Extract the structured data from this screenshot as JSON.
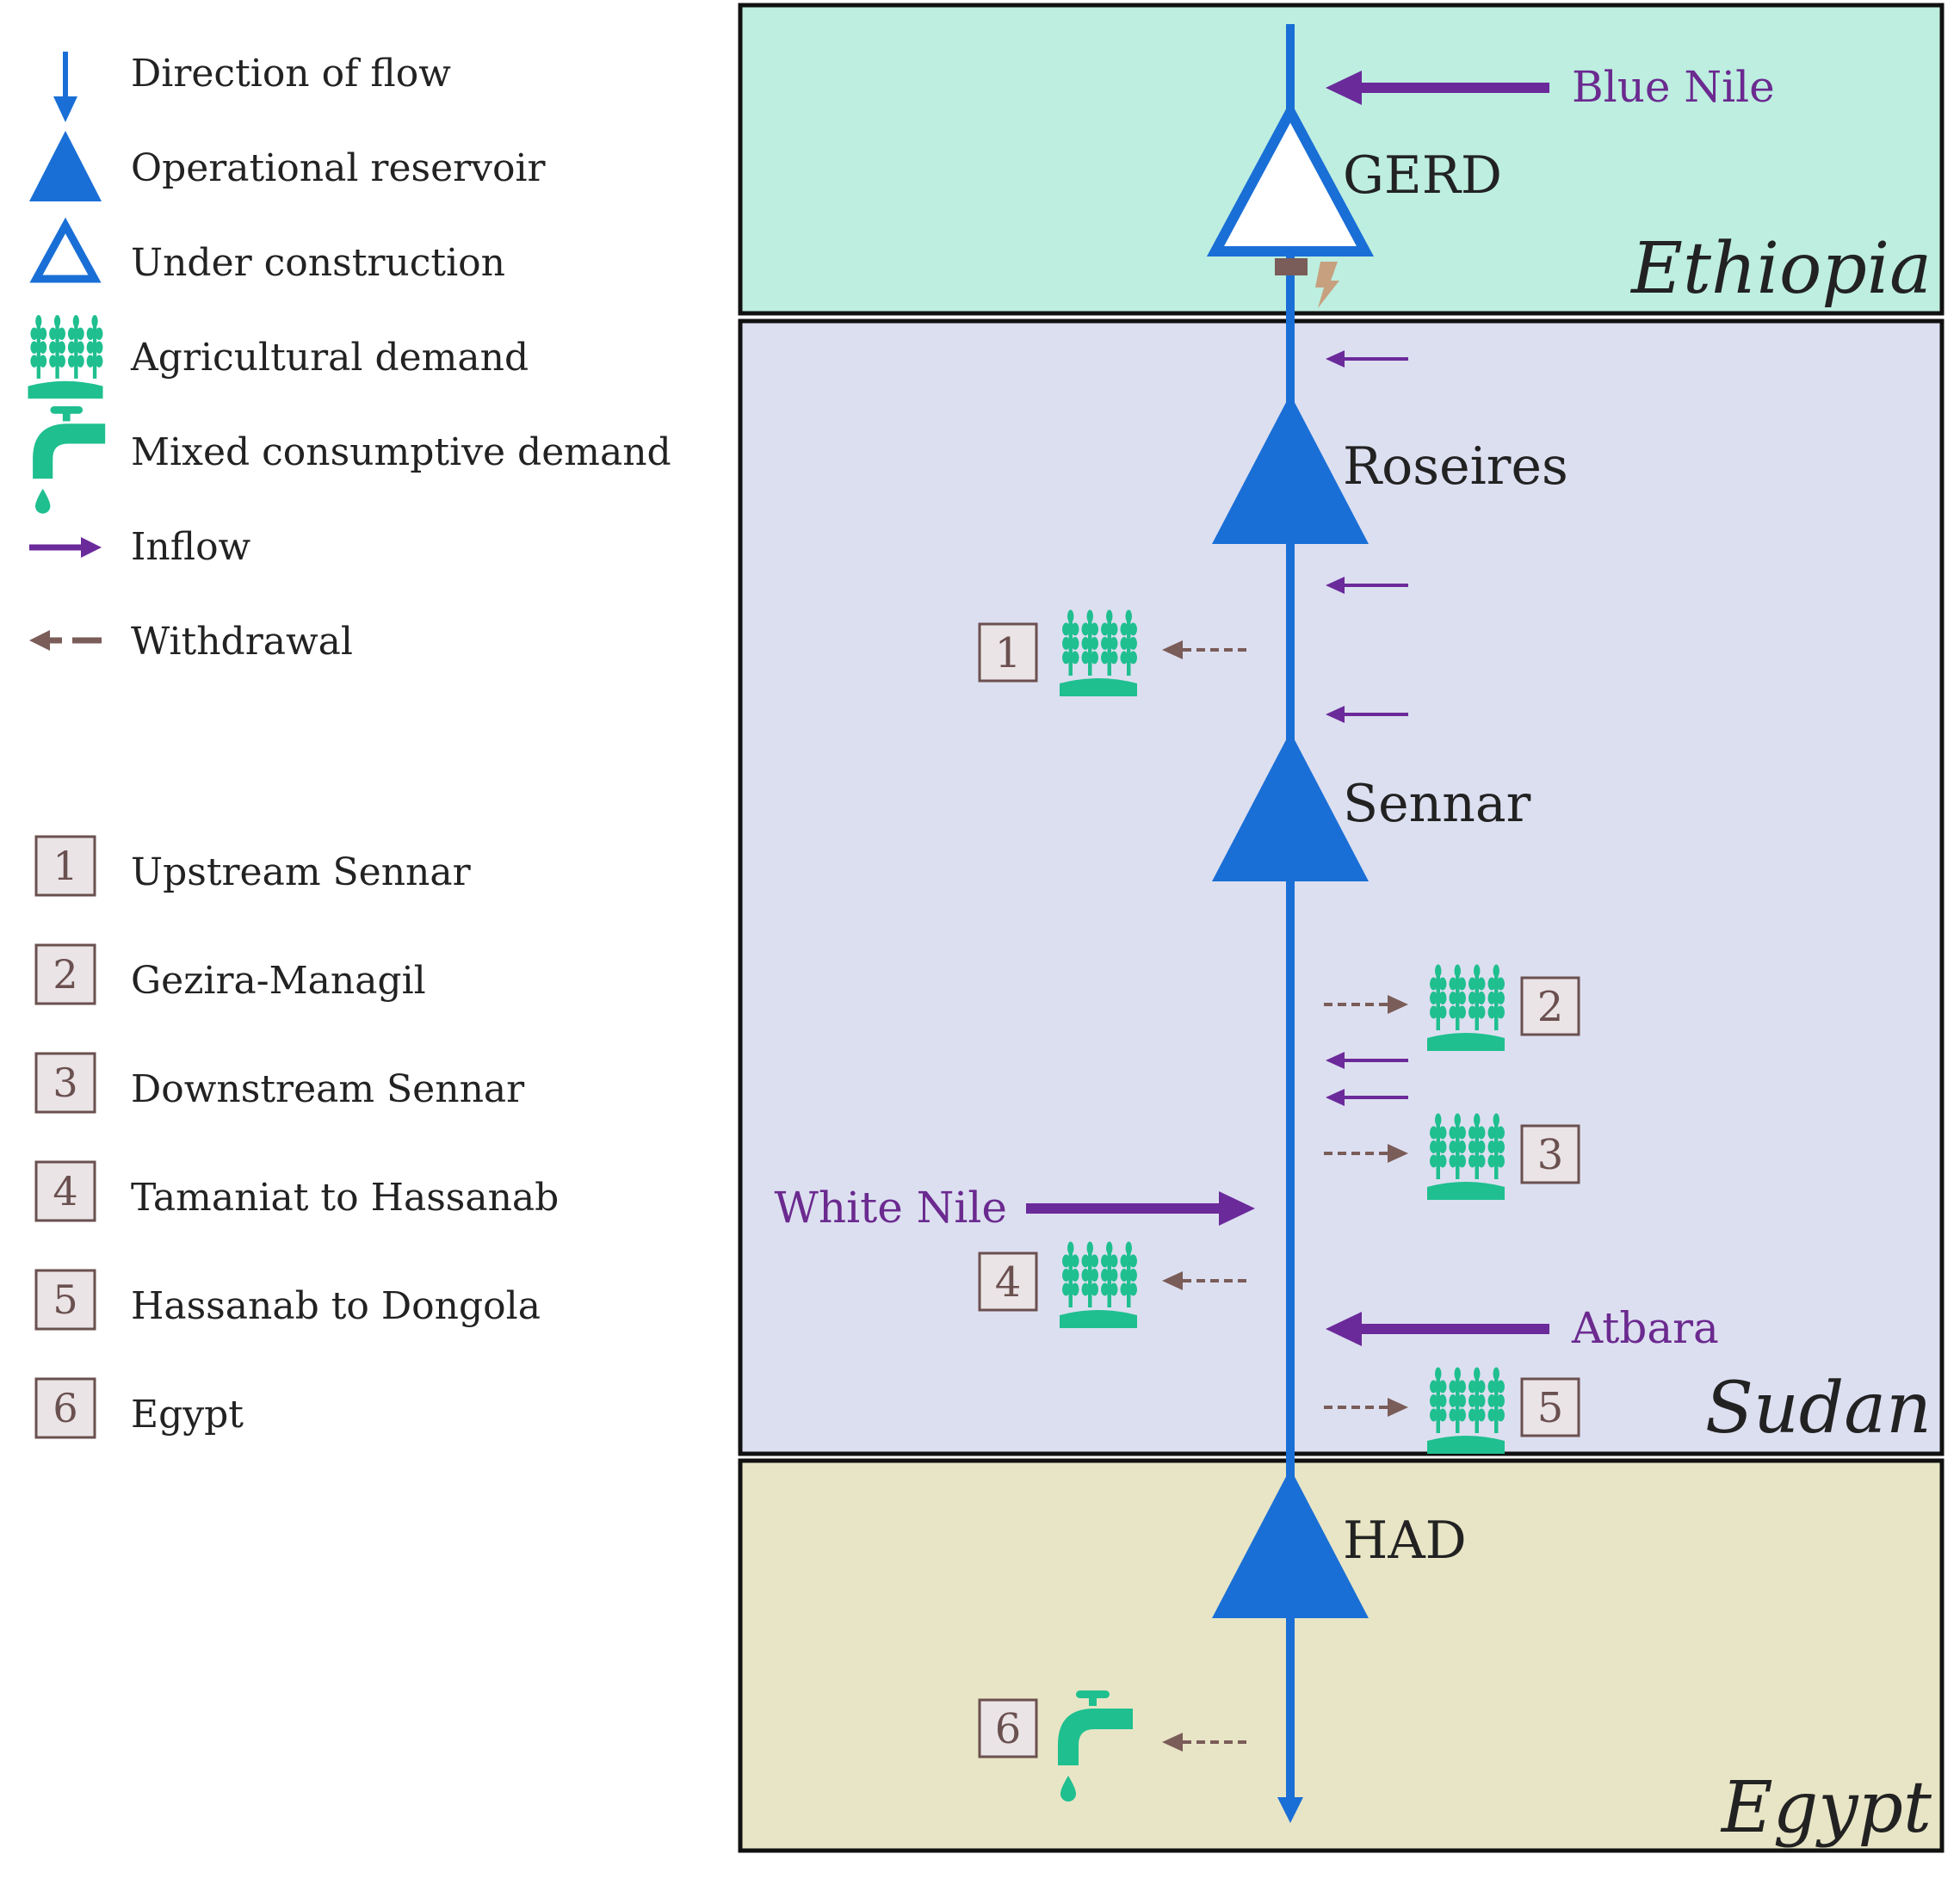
{
  "colors": {
    "flow_blue": "#1a6fd6",
    "inflow_purple": "#6b2a9a",
    "withdrawal_brown": "#7a5c58",
    "demand_green": "#1fbf8f",
    "ethiopia_bg": "#bdeee0",
    "sudan_bg": "#dcdff0",
    "egypt_bg": "#e7e5c5"
  },
  "legend": {
    "symbols": [
      {
        "icon": "direction-of-flow-arrow-icon",
        "label": "Direction of flow"
      },
      {
        "icon": "operational-reservoir-icon",
        "label": "Operational reservoir"
      },
      {
        "icon": "under-construction-reservoir-icon",
        "label": "Under construction"
      },
      {
        "icon": "agricultural-demand-icon",
        "label": "Agricultural demand"
      },
      {
        "icon": "water-tap-icon",
        "label": "Mixed consumptive demand"
      },
      {
        "icon": "inflow-arrow-icon",
        "label": "Inflow"
      },
      {
        "icon": "withdrawal-arrow-icon",
        "label": "Withdrawal"
      }
    ],
    "demands": [
      {
        "num": "1",
        "label": "Upstream Sennar"
      },
      {
        "num": "2",
        "label": "Gezira-Managil"
      },
      {
        "num": "3",
        "label": "Downstream Sennar"
      },
      {
        "num": "4",
        "label": "Tamaniat to Hassanab"
      },
      {
        "num": "5",
        "label": "Hassanab to Dongola"
      },
      {
        "num": "6",
        "label": "Egypt"
      }
    ]
  },
  "countries": {
    "ethiopia": "Ethiopia",
    "sudan": "Sudan",
    "egypt": "Egypt"
  },
  "reservoirs": {
    "gerd": "GERD",
    "roseires": "Roseires",
    "sennar": "Sennar",
    "had": "HAD"
  },
  "rivers": {
    "blue_nile": "Blue Nile",
    "white_nile": "White Nile",
    "atbara": "Atbara"
  },
  "demand_boxes": {
    "d1": "1",
    "d2": "2",
    "d3": "3",
    "d4": "4",
    "d5": "5",
    "d6": "6"
  }
}
